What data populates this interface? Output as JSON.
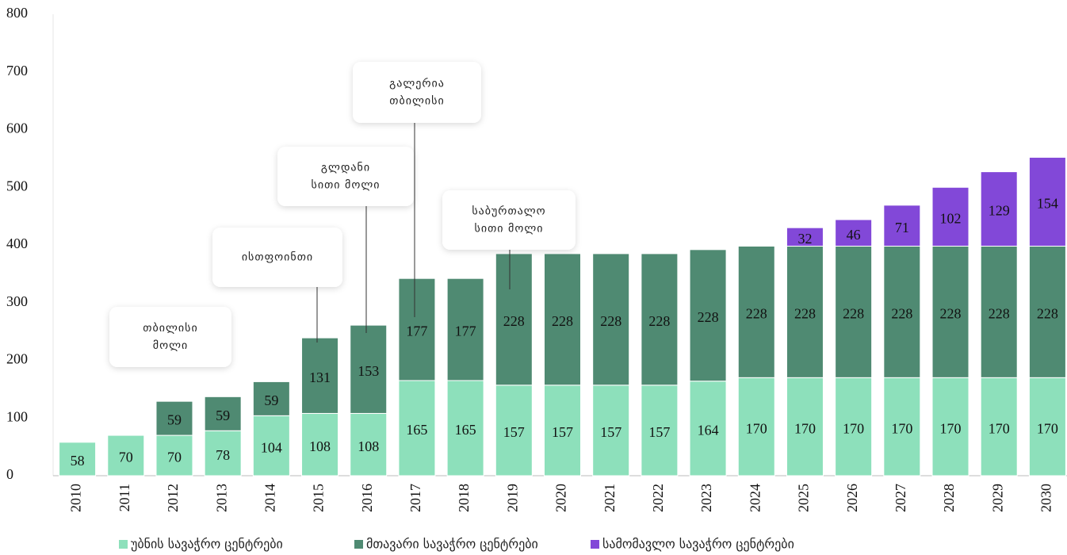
{
  "chart_data": {
    "type": "bar",
    "stacked": true,
    "categories": [
      "2010",
      "2011",
      "2012",
      "2013",
      "2014",
      "2015",
      "2016",
      "2017",
      "2018",
      "2019",
      "2020",
      "2021",
      "2022",
      "2023",
      "2024",
      "2025",
      "2026",
      "2027",
      "2028",
      "2029",
      "2030"
    ],
    "series": [
      {
        "name": "უბნის სავაჭრო ცენტრები",
        "color": "#8de0bb",
        "values": [
          58,
          70,
          70,
          78,
          104,
          108,
          108,
          165,
          165,
          157,
          157,
          157,
          157,
          164,
          170,
          170,
          170,
          170,
          170,
          170,
          170
        ]
      },
      {
        "name": "მთავარი სავაჭრო ცენტრები",
        "color": "#4f8a72",
        "values": [
          null,
          null,
          59,
          59,
          59,
          131,
          153,
          177,
          177,
          228,
          228,
          228,
          228,
          228,
          228,
          228,
          228,
          228,
          228,
          228,
          228
        ]
      },
      {
        "name": "სამომავლო სავაჭრო ცენტრები",
        "color": "#8248d8",
        "values": [
          null,
          null,
          null,
          null,
          null,
          null,
          null,
          null,
          null,
          null,
          null,
          null,
          null,
          null,
          null,
          32,
          46,
          71,
          102,
          129,
          154
        ]
      }
    ],
    "ylim": [
      0,
      800
    ],
    "yticks": [
      0,
      100,
      200,
      300,
      400,
      500,
      600,
      700,
      800
    ],
    "annotations": [
      {
        "lines": [
          "თბილისი",
          "მოლი"
        ]
      },
      {
        "lines": [
          "ისთფოინთი"
        ]
      },
      {
        "lines": [
          "გლდანი",
          "სითი მოლი"
        ]
      },
      {
        "lines": [
          "გალერია",
          "თბილისი"
        ]
      },
      {
        "lines": [
          "საბურთალო",
          "სითი მოლი"
        ]
      }
    ]
  }
}
